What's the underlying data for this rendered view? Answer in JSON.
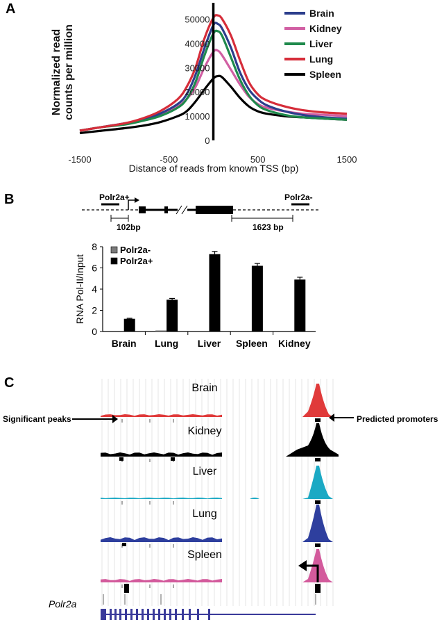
{
  "panels": {
    "a": "A",
    "b": "B",
    "c": "C"
  },
  "colors": {
    "brain": "#2c3e8c",
    "kidney": "#d15fa3",
    "liver": "#1f8a4c",
    "lung": "#d62d3a",
    "spleen": "#000000",
    "track_brain": "#e03a3a",
    "track_kidney": "#000000",
    "track_liver": "#1ba9c4",
    "track_lung": "#2e3f9e",
    "track_spleen": "#d35a9c",
    "gene": "#3a3a9a"
  },
  "chart_data": [
    {
      "id": "A",
      "type": "line",
      "title": "",
      "xlabel": "Distance of reads from known TSS (bp)",
      "ylabel": "Normalized read counts per million",
      "ylabel_lines": [
        "Normalized read",
        "counts per million"
      ],
      "xlim": [
        -1500,
        1500
      ],
      "ylim": [
        0,
        55000
      ],
      "x_ticks": [
        -1500,
        -500,
        500,
        1500
      ],
      "x_tick_labels": [
        "-1500",
        "-500",
        "500",
        "1500"
      ],
      "y_ticks": [
        0,
        10000,
        20000,
        30000,
        40000,
        50000
      ],
      "y_tick_labels": [
        "0",
        "10000",
        "20000",
        "30000",
        "40000",
        "50000"
      ],
      "vertical_line_at": 0,
      "legend_position": "top-right",
      "x": [
        -1500,
        -1250,
        -1000,
        -800,
        -600,
        -400,
        -300,
        -200,
        -100,
        0,
        50,
        100,
        200,
        300,
        400,
        500,
        600,
        800,
        1000,
        1250,
        1500
      ],
      "series": [
        {
          "name": "Brain",
          "color": "#2c3e8c",
          "values": [
            4000,
            5500,
            7000,
            8500,
            11000,
            15000,
            19000,
            27000,
            38000,
            47500,
            48000,
            46000,
            38000,
            28000,
            21000,
            17000,
            14500,
            12000,
            10500,
            9500,
            9000
          ]
        },
        {
          "name": "Kidney",
          "color": "#d15fa3",
          "values": [
            4000,
            5500,
            7000,
            8500,
            10500,
            14000,
            17000,
            22000,
            30000,
            36500,
            37000,
            35000,
            29000,
            23000,
            18000,
            15000,
            13500,
            12000,
            11000,
            10500,
            10000
          ]
        },
        {
          "name": "Liver",
          "color": "#1f8a4c",
          "values": [
            4000,
            5500,
            6500,
            8000,
            10000,
            13500,
            17000,
            24000,
            35000,
            44000,
            45000,
            43000,
            34000,
            25000,
            18500,
            14500,
            12500,
            10500,
            9500,
            9000,
            8500
          ]
        },
        {
          "name": "Lung",
          "color": "#d62d3a",
          "values": [
            4000,
            5500,
            7000,
            9000,
            12000,
            17000,
            22000,
            30000,
            42000,
            50500,
            51500,
            50000,
            43000,
            33000,
            24000,
            19000,
            16500,
            14000,
            12500,
            11500,
            11000
          ]
        },
        {
          "name": "Spleen",
          "color": "#000000",
          "values": [
            3000,
            4000,
            5000,
            6000,
            7500,
            10000,
            12000,
            16000,
            21000,
            25500,
            26500,
            26000,
            22000,
            17500,
            14000,
            12000,
            11000,
            10000,
            9500,
            9000,
            8500
          ]
        }
      ]
    },
    {
      "id": "B",
      "type": "bar",
      "title": "",
      "xlabel": "",
      "ylabel": "RNA Pol-II/Input",
      "ylim": [
        0,
        8
      ],
      "y_ticks": [
        0,
        2,
        4,
        6,
        8
      ],
      "y_tick_labels": [
        "0",
        "2",
        "4",
        "6",
        "8"
      ],
      "categories": [
        "Brain",
        "Lung",
        "Liver",
        "Spleen",
        "Kidney"
      ],
      "legend_position": "top-left",
      "series": [
        {
          "name": "Polr2a-",
          "color": "#7a7a7a",
          "values": [
            0.0,
            0.1,
            0.0,
            0.0,
            0.0
          ],
          "errors": [
            0,
            0,
            0,
            0,
            0
          ]
        },
        {
          "name": "Polr2a+",
          "color": "#000000",
          "values": [
            1.2,
            3.0,
            7.3,
            6.2,
            4.9
          ],
          "errors": [
            0.05,
            0.12,
            0.25,
            0.22,
            0.22
          ]
        }
      ]
    }
  ],
  "gene_diagram": {
    "label_plus": "Polr2a+",
    "label_minus": "Polr2a-",
    "dist_plus": "102bp",
    "dist_minus": "1623 bp"
  },
  "browser": {
    "tracks": [
      "Brain",
      "Kidney",
      "Liver",
      "Lung",
      "Spleen"
    ],
    "annotation_left": "Significant peaks",
    "annotation_right": "Predicted promoters",
    "gene_label": "Polr2a"
  }
}
